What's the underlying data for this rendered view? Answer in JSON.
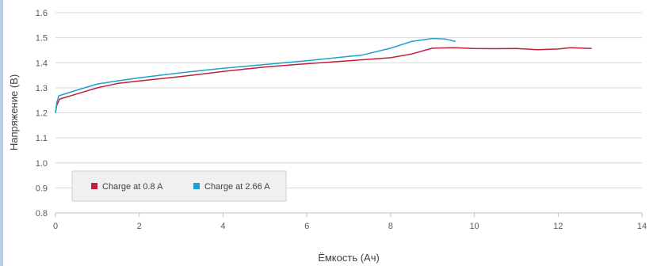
{
  "chart_data": {
    "type": "line",
    "title": "",
    "xlabel": "Ёмкость (Ач)",
    "ylabel": "Напряжение (В)",
    "xlim": [
      0,
      14
    ],
    "ylim": [
      0.8,
      1.6
    ],
    "x_ticks": [
      "0",
      "2",
      "4",
      "6",
      "8",
      "10",
      "12",
      "14"
    ],
    "y_ticks": [
      "0.8",
      "0.9",
      "1.0",
      "1.1",
      "1.2",
      "1.3",
      "1.4",
      "1.5",
      "1.6"
    ],
    "grid": "horizontal",
    "legend_placement": "bottom-left",
    "series": [
      {
        "name": "Charge at 0.8 A",
        "color": "#c0203a",
        "points": [
          [
            0.0,
            1.2
          ],
          [
            0.03,
            1.23
          ],
          [
            0.1,
            1.255
          ],
          [
            0.5,
            1.275
          ],
          [
            1.0,
            1.3
          ],
          [
            1.5,
            1.318
          ],
          [
            2.0,
            1.327
          ],
          [
            3.0,
            1.345
          ],
          [
            4.0,
            1.365
          ],
          [
            5.0,
            1.383
          ],
          [
            6.0,
            1.396
          ],
          [
            7.0,
            1.408
          ],
          [
            8.0,
            1.42
          ],
          [
            8.5,
            1.435
          ],
          [
            9.0,
            1.458
          ],
          [
            9.5,
            1.46
          ],
          [
            10.0,
            1.457
          ],
          [
            10.5,
            1.456
          ],
          [
            11.0,
            1.457
          ],
          [
            11.5,
            1.452
          ],
          [
            12.0,
            1.455
          ],
          [
            12.3,
            1.46
          ],
          [
            12.8,
            1.457
          ]
        ]
      },
      {
        "name": "Charge at 2.66 A",
        "color": "#1fa1d0",
        "points": [
          [
            0.0,
            1.2
          ],
          [
            0.03,
            1.24
          ],
          [
            0.08,
            1.268
          ],
          [
            0.5,
            1.29
          ],
          [
            1.0,
            1.315
          ],
          [
            1.5,
            1.328
          ],
          [
            2.0,
            1.34
          ],
          [
            3.0,
            1.36
          ],
          [
            4.0,
            1.378
          ],
          [
            5.0,
            1.393
          ],
          [
            6.0,
            1.408
          ],
          [
            7.0,
            1.425
          ],
          [
            7.3,
            1.43
          ],
          [
            8.0,
            1.458
          ],
          [
            8.5,
            1.485
          ],
          [
            9.0,
            1.497
          ],
          [
            9.3,
            1.495
          ],
          [
            9.55,
            1.485
          ]
        ]
      }
    ]
  }
}
